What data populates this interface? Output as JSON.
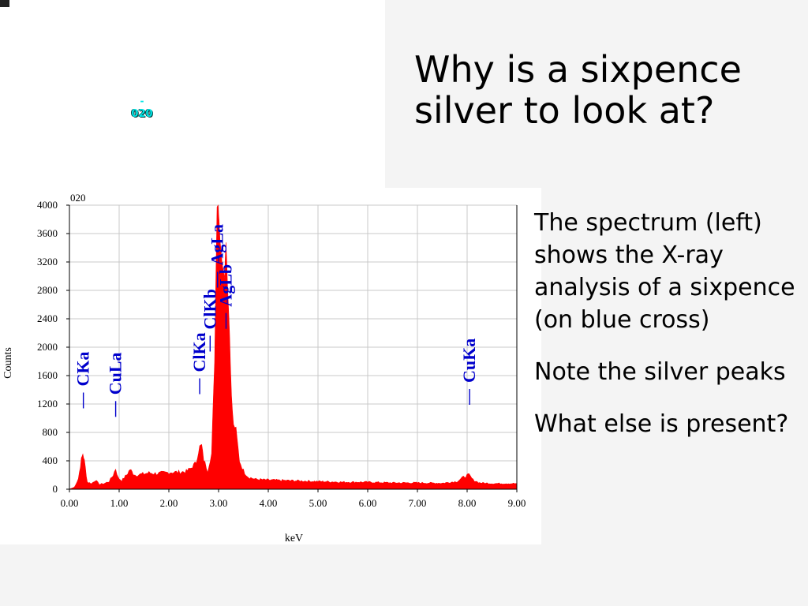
{
  "slide": {
    "title": "Why is a sixpence silver to look at?",
    "body": [
      "The spectrum (left) shows the X-ray analysis of a sixpence (on blue cross)",
      "Note the silver peaks",
      "What else is present?"
    ]
  },
  "micrograph": {
    "marker": "-",
    "label": "020"
  },
  "colors": {
    "spectrum": "#ff0000",
    "peak_labels": "#0000cc",
    "micro_label": "#00e5e5"
  },
  "chart_data": {
    "type": "area",
    "title": "020",
    "xlabel": "keV",
    "ylabel": "Counts",
    "xlim": [
      0,
      9
    ],
    "ylim": [
      0,
      4000
    ],
    "grid": true,
    "x_ticks": [
      0,
      1,
      2,
      3,
      4,
      5,
      6,
      7,
      8,
      9
    ],
    "x_tick_labels": [
      "0.00",
      "1.00",
      "2.00",
      "3.00",
      "4.00",
      "5.00",
      "6.00",
      "7.00",
      "8.00",
      "9.00"
    ],
    "y_ticks": [
      0,
      400,
      800,
      1200,
      1600,
      2000,
      2400,
      2800,
      3200,
      3600,
      4000
    ],
    "y_tick_labels": [
      "0",
      "400",
      "800",
      "1200",
      "1600",
      "2000",
      "2400",
      "2800",
      "3200",
      "3600",
      "4000"
    ],
    "series": [
      {
        "x": [
          0.0,
          0.1,
          0.18,
          0.24,
          0.27,
          0.3,
          0.36,
          0.45,
          0.52,
          0.6,
          0.7,
          0.8,
          0.88,
          0.93,
          0.98,
          1.05,
          1.15,
          1.22,
          1.26,
          1.32,
          1.45,
          1.6,
          1.75,
          1.9,
          2.05,
          2.2,
          2.35,
          2.45,
          2.55,
          2.62,
          2.66,
          2.7,
          2.78,
          2.86,
          2.92,
          2.97,
          2.99,
          3.01,
          3.03,
          3.07,
          3.12,
          3.15,
          3.18,
          3.22,
          3.26,
          3.3,
          3.35,
          3.42,
          3.5,
          3.6,
          3.75,
          4.0,
          4.5,
          5.0,
          5.5,
          6.0,
          6.5,
          7.0,
          7.5,
          7.8,
          7.95,
          8.04,
          8.12,
          8.25,
          8.5,
          9.0
        ],
        "y": [
          0,
          30,
          150,
          420,
          500,
          400,
          100,
          80,
          130,
          70,
          80,
          110,
          200,
          290,
          160,
          120,
          200,
          280,
          240,
          200,
          210,
          230,
          220,
          230,
          240,
          240,
          250,
          300,
          380,
          600,
          620,
          420,
          260,
          500,
          1800,
          4000,
          4000,
          3800,
          3500,
          3200,
          3000,
          3500,
          2900,
          2200,
          1300,
          900,
          850,
          400,
          260,
          170,
          140,
          130,
          120,
          110,
          100,
          100,
          90,
          90,
          85,
          110,
          180,
          200,
          130,
          90,
          80,
          80
        ]
      }
    ],
    "peak_labels": [
      {
        "text": "CKa",
        "x": 0.28,
        "y": 1450
      },
      {
        "text": "CuLa",
        "x": 0.93,
        "y": 1330
      },
      {
        "text": "ClKa",
        "x": 2.62,
        "y": 1650
      },
      {
        "text": "ClKb",
        "x": 2.83,
        "y": 2250
      },
      {
        "text": "AgLa",
        "x": 2.98,
        "y": 3150
      },
      {
        "text": "AgLb",
        "x": 3.15,
        "y": 2570
      },
      {
        "text": "CuKa",
        "x": 8.05,
        "y": 1500
      }
    ]
  }
}
